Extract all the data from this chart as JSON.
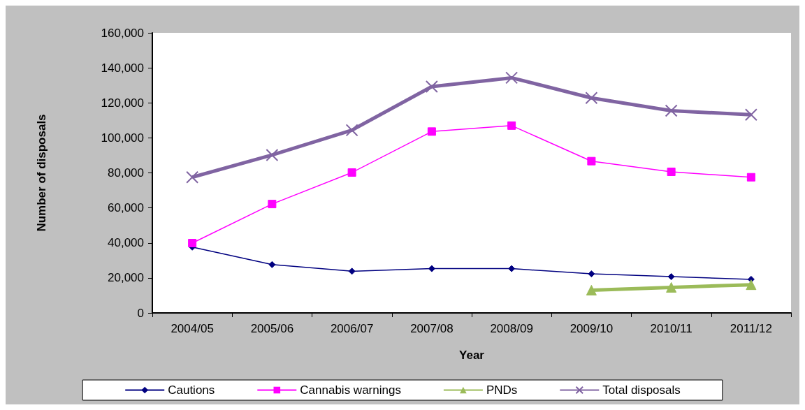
{
  "chart_data": {
    "type": "line",
    "xlabel": "Year",
    "ylabel": "Number of disposals",
    "categories": [
      "2004/05",
      "2005/06",
      "2006/07",
      "2007/08",
      "2008/09",
      "2009/10",
      "2010/11",
      "2011/12"
    ],
    "ylim": [
      0,
      160000
    ],
    "yticks": [
      0,
      {
        "value": 20000,
        "label": "20,000"
      },
      {
        "value": 40000,
        "label": "40,000"
      },
      {
        "value": 60000,
        "label": "60,000"
      },
      {
        "value": 80000,
        "label": "80,000"
      },
      {
        "value": 100000,
        "label": "100,000"
      },
      {
        "value": 120000,
        "label": "120,000"
      },
      {
        "value": 140000,
        "label": "140,000"
      },
      {
        "value": 160000,
        "label": "160,000"
      }
    ],
    "legend": "bottom",
    "grid": false,
    "series": [
      {
        "name": "Cautions",
        "color": "#000080",
        "marker": "diamond",
        "values": [
          37600,
          27600,
          23800,
          25300,
          25300,
          22300,
          20700,
          19200
        ]
      },
      {
        "name": "Cannabis warnings",
        "color": "#ff00ff",
        "marker": "square",
        "values": [
          39900,
          62200,
          80200,
          103600,
          107000,
          86700,
          80600,
          77500
        ]
      },
      {
        "name": "PNDs",
        "color": "#9bbb59",
        "marker": "triangle",
        "values": [
          null,
          null,
          null,
          null,
          null,
          13000,
          14600,
          16100
        ]
      },
      {
        "name": "Total disposals",
        "color": "#8064a2",
        "marker": "cross",
        "values": [
          77500,
          90200,
          104400,
          129300,
          134300,
          122800,
          115500,
          113200
        ]
      }
    ]
  }
}
